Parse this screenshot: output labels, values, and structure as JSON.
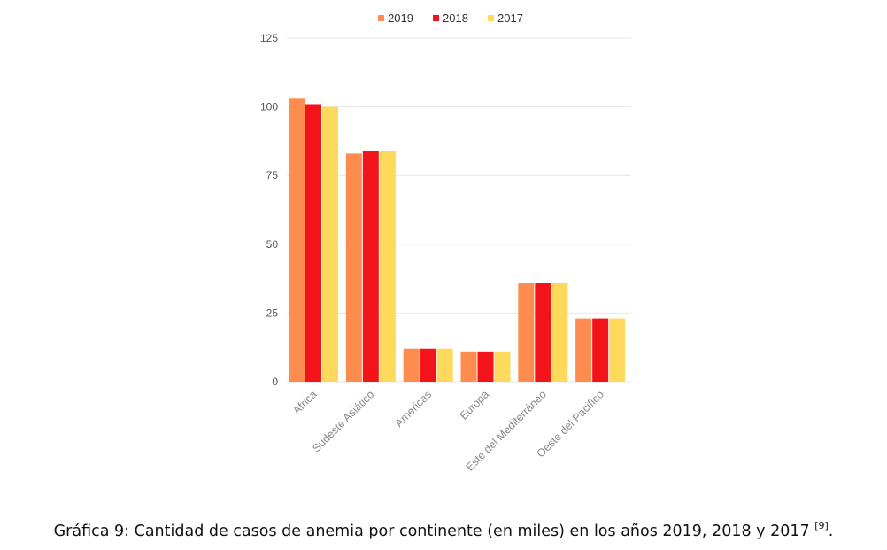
{
  "chart_data": {
    "type": "bar",
    "categories": [
      "Africa",
      "Sudeste Asiático",
      "Americas",
      "Europa",
      "Este del Mediterráneo",
      "Oeste del Pacifico"
    ],
    "series": [
      {
        "name": "2019",
        "color": "#fd8c4e",
        "values": [
          103,
          83,
          12,
          11,
          36,
          23
        ]
      },
      {
        "name": "2018",
        "color": "#f2141a",
        "values": [
          101,
          84,
          12,
          11,
          36,
          23
        ]
      },
      {
        "name": "2017",
        "color": "#fed95c",
        "values": [
          100,
          84,
          12,
          11,
          36,
          23
        ]
      }
    ],
    "ylim": [
      0,
      125
    ],
    "yticks": [
      0,
      25,
      50,
      75,
      100,
      125
    ],
    "grid": true,
    "legend": "top-center",
    "title": "",
    "xlabel": "",
    "ylabel": ""
  },
  "caption": {
    "text": "Gráfica 9: Cantidad de casos de anemia por continente (en miles) en los años 2019, 2018 y 2017",
    "ref": "[9]",
    "end": "."
  }
}
